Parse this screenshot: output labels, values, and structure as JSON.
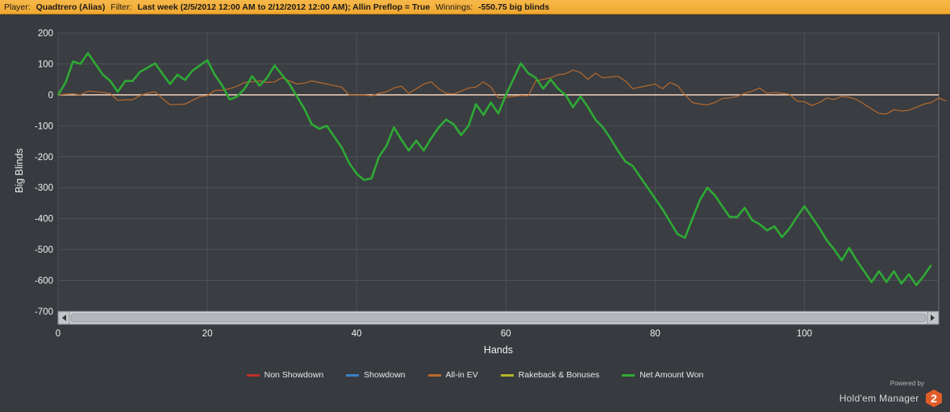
{
  "filter_bar": {
    "player_label": "Player:",
    "player_value": "Quadtrero (Alias)",
    "filter_label": "Filter:",
    "filter_value": "Last week (2/5/2012 12:00 AM to 2/12/2012 12:00 AM); Allin Preflop = True",
    "winnings_label": "Winnings:",
    "winnings_value": "-550.75 big blinds"
  },
  "branding": {
    "powered_by": "Powered by",
    "name": "Hold'em Manager",
    "badge": "2"
  },
  "chart_data": {
    "type": "line",
    "xlabel": "Hands",
    "ylabel": "Big Blinds",
    "xlim": [
      0,
      118
    ],
    "ylim": [
      -700,
      200
    ],
    "x_ticks": [
      0,
      20,
      40,
      60,
      80,
      100
    ],
    "y_ticks": [
      200,
      100,
      0,
      -100,
      -200,
      -300,
      -400,
      -500,
      -600,
      -700
    ],
    "grid": true,
    "legend_position": "bottom",
    "zero_line_color": "#f5d5c0",
    "series": [
      {
        "name": "Non Showdown",
        "color": "#c0302a",
        "values": []
      },
      {
        "name": "Showdown",
        "color": "#3a7fc8",
        "values": []
      },
      {
        "name": "All-in EV",
        "color": "#b86a2c",
        "values": [
          0,
          2,
          3,
          0,
          12,
          10,
          8,
          4,
          -18,
          -16,
          -16,
          -2,
          6,
          10,
          -12,
          -32,
          -31,
          -30,
          -18,
          -6,
          -2,
          14,
          15,
          20,
          28,
          40,
          42,
          45,
          40,
          42,
          55,
          45,
          35,
          38,
          45,
          40,
          35,
          30,
          25,
          0,
          0,
          0,
          -3,
          5,
          10,
          22,
          28,
          5,
          20,
          35,
          42,
          20,
          5,
          3,
          12,
          22,
          25,
          42,
          25,
          -10,
          -8,
          -5,
          -2,
          -3,
          45,
          50,
          55,
          65,
          68,
          80,
          72,
          50,
          70,
          55,
          58,
          60,
          45,
          20,
          25,
          30,
          35,
          20,
          40,
          30,
          0,
          -25,
          -30,
          -32,
          -25,
          -12,
          -10,
          -5,
          5,
          12,
          22,
          5,
          8,
          5,
          2,
          -20,
          -22,
          -35,
          -25,
          -10,
          -15,
          -5,
          -8,
          -15,
          -30,
          -45,
          -60,
          -62,
          -48,
          -52,
          -50,
          -40,
          -30,
          -25,
          -10,
          -20
        ]
      },
      {
        "name": "Rakeback & Bonuses",
        "color": "#b5b52a",
        "values": []
      },
      {
        "name": "Net Amount Won",
        "color": "#2eaa35",
        "values": [
          0,
          40,
          108,
          100,
          135,
          100,
          65,
          45,
          10,
          45,
          45,
          75,
          88,
          102,
          68,
          35,
          65,
          48,
          78,
          95,
          112,
          65,
          30,
          -15,
          -5,
          20,
          60,
          30,
          55,
          95,
          65,
          35,
          -5,
          -45,
          -95,
          -110,
          -100,
          -135,
          -170,
          -220,
          -255,
          -275,
          -270,
          -200,
          -165,
          -105,
          -145,
          -180,
          -148,
          -180,
          -140,
          -105,
          -80,
          -95,
          -130,
          -100,
          -30,
          -65,
          -25,
          -60,
          0,
          50,
          102,
          70,
          55,
          20,
          50,
          20,
          0,
          -40,
          -5,
          -40,
          -80,
          -105,
          -140,
          -180,
          -215,
          -230,
          -265,
          -300,
          -335,
          -370,
          -410,
          -450,
          -462,
          -400,
          -340,
          -300,
          -325,
          -360,
          -395,
          -395,
          -365,
          -405,
          -418,
          -438,
          -425,
          -460,
          -432,
          -395,
          -360,
          -395,
          -430,
          -470,
          -500,
          -535,
          -495,
          -535,
          -570,
          -605,
          -570,
          -605,
          -570,
          -610,
          -580,
          -615,
          -585,
          -550
        ]
      }
    ]
  }
}
